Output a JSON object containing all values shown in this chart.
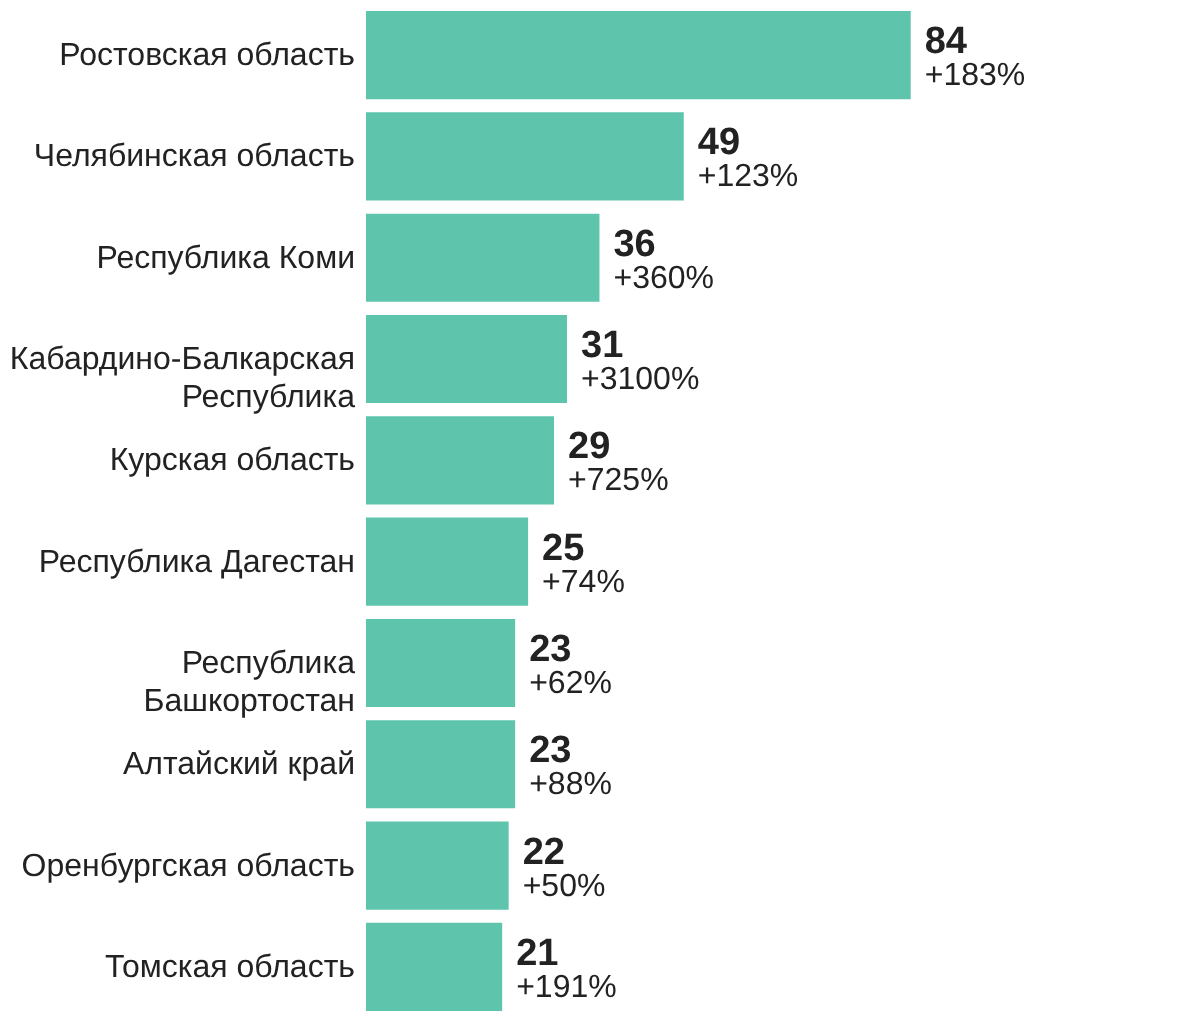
{
  "chart_data": {
    "type": "bar",
    "orientation": "horizontal",
    "categories": [
      "Ростовская область",
      "Челябинская область",
      "Республика Коми",
      "Кабардино-Балкарская Республика",
      "Курская область",
      "Республика Дагестан",
      "Республика Башкортостан",
      "Алтайский край",
      "Оренбургская область",
      "Томская область"
    ],
    "values": [
      84,
      49,
      36,
      31,
      29,
      25,
      23,
      23,
      22,
      21
    ],
    "color": "#5fc4ac",
    "data_labels": true,
    "annotations": [
      {
        "text": "+183%",
        "x": 84,
        "y": "Ростовская область"
      },
      {
        "text": "+123%",
        "x": 49,
        "y": "Челябинская область"
      },
      {
        "text": "+360%",
        "x": 36,
        "y": "Республика Коми"
      },
      {
        "text": "+3100%",
        "x": 31,
        "y": "Кабардино-Балкарская Республика"
      },
      {
        "text": "+725%",
        "x": 29,
        "y": "Курская область"
      },
      {
        "text": "+74%",
        "x": 25,
        "y": "Республика Дагестан"
      },
      {
        "text": "+62%",
        "x": 23,
        "y": "Республика Башкортостан"
      },
      {
        "text": "+88%",
        "x": 23,
        "y": "Алтайский край"
      },
      {
        "text": "+50%",
        "x": 22,
        "y": "Оренбургская область"
      },
      {
        "text": "+191%",
        "x": 21,
        "y": "Томская область"
      }
    ]
  }
}
